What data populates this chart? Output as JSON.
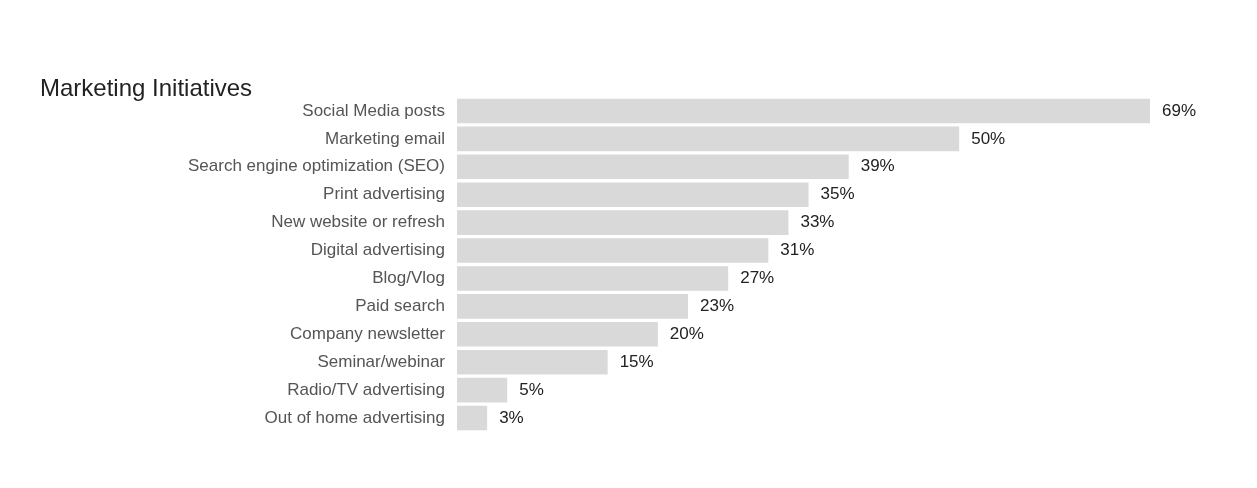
{
  "chart_data": {
    "type": "bar",
    "orientation": "horizontal",
    "title": "Marketing Initiatives",
    "categories": [
      "Social Media posts",
      "Marketing email",
      "Search engine optimization (SEO)",
      "Print advertising",
      "New website or refresh",
      "Digital advertising",
      "Blog/Vlog",
      "Paid search",
      "Company newsletter",
      "Seminar/webinar",
      "Radio/TV advertising",
      "Out of home advertising"
    ],
    "values": [
      69,
      50,
      39,
      35,
      33,
      31,
      27,
      23,
      20,
      15,
      5,
      3
    ],
    "value_labels": [
      "69%",
      "50%",
      "39%",
      "35%",
      "33%",
      "31%",
      "27%",
      "23%",
      "20%",
      "15%",
      "5%",
      "3%"
    ],
    "color": "#d9d9d9",
    "tick_labels": "y",
    "grid": false,
    "legend": false
  }
}
